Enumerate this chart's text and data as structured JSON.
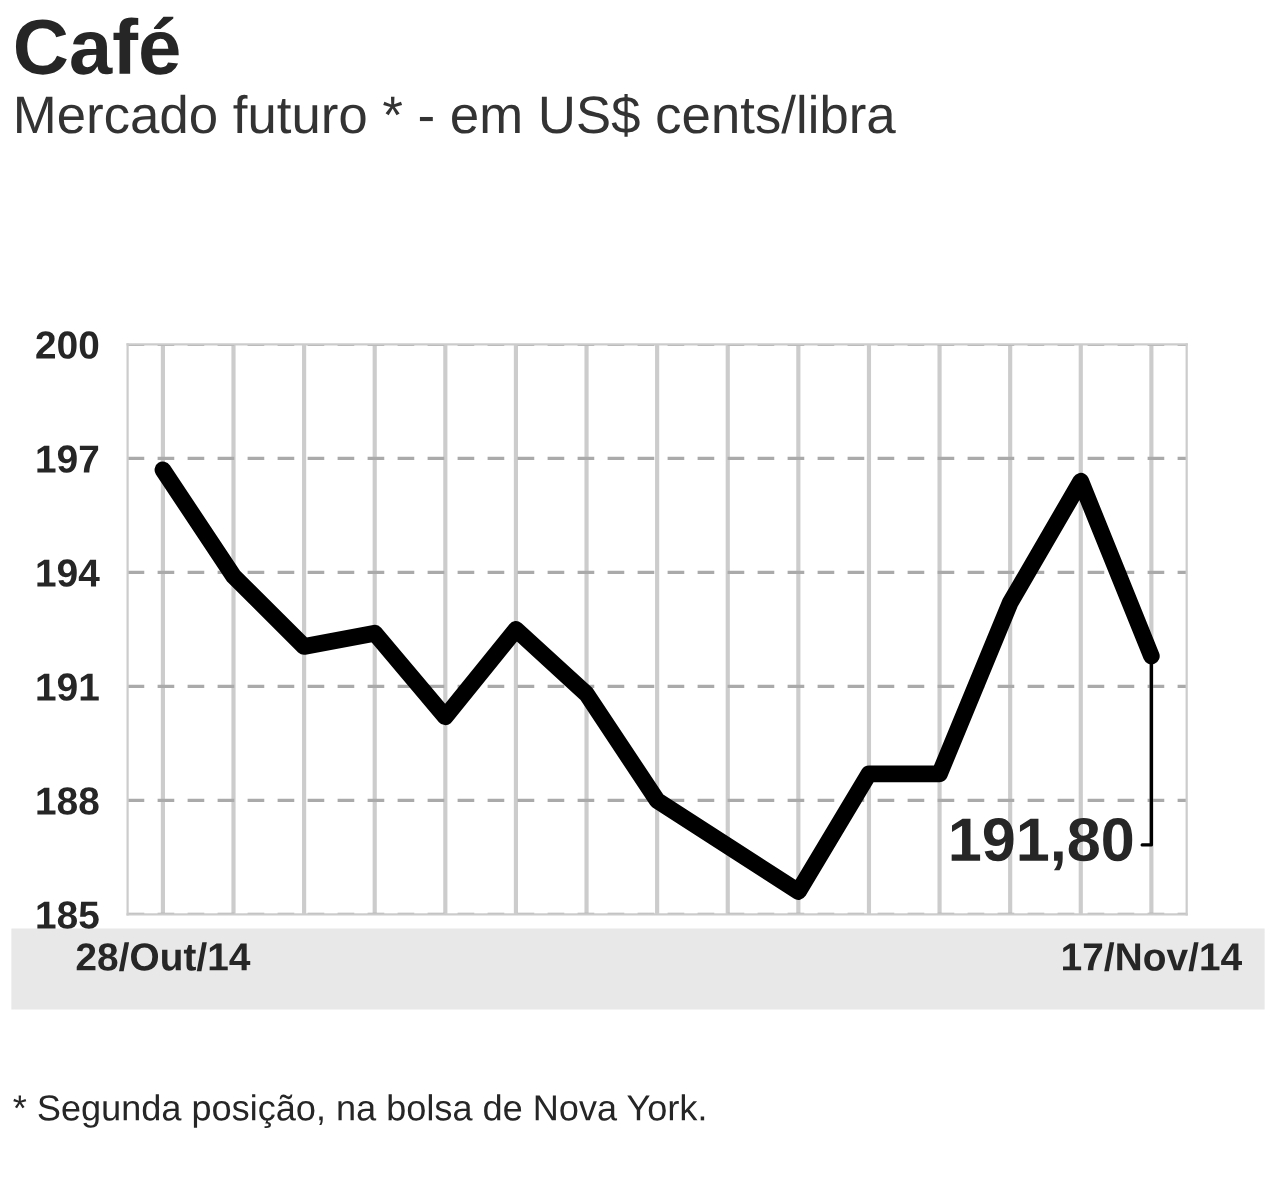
{
  "chart_data": {
    "type": "line",
    "title": "Café",
    "subtitle": "Mercado futuro * - em US$ cents/libra",
    "categories": [
      "28/Out/14",
      null,
      null,
      null,
      null,
      null,
      null,
      null,
      null,
      null,
      null,
      null,
      null,
      null,
      "17/Nov/14"
    ],
    "series": [
      {
        "color": "#000000",
        "values": [
          196.7,
          193.9,
          192.05,
          192.4,
          190.2,
          192.5,
          190.8,
          188.0,
          186.8,
          185.6,
          188.7,
          188.7,
          193.2,
          196.4,
          191.8
        ]
      }
    ],
    "ylim": [
      185,
      200
    ],
    "yticks": [
      185,
      188,
      191,
      194,
      197,
      200
    ],
    "grid": true,
    "marker": "none",
    "line_style": "solid",
    "annotations": [
      {
        "text": "191,80",
        "x": "17/Nov/14",
        "y": 191.8
      },
      "* Segunda posição, na bolsa de Nova York."
    ]
  }
}
